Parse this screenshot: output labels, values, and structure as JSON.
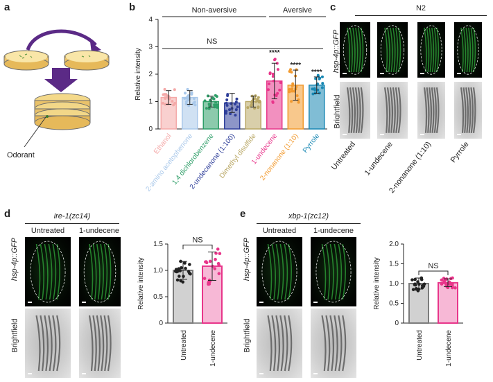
{
  "panels": {
    "a": {
      "label": "a",
      "odorant_label": "Odorant"
    },
    "b": {
      "label": "b",
      "group_non_aversive": "Non-aversive",
      "group_aversive": "Aversive",
      "ns_label": "NS",
      "ylabel": "Relative intensity"
    },
    "c": {
      "label": "c",
      "strain": "N2",
      "row_fluor": "hsp-4p::GFP",
      "row_bright": "Brightfield",
      "conditions": [
        "Untreated",
        "1-undecene",
        "2-nonanone (1:10)",
        "Pyrrole"
      ]
    },
    "d": {
      "label": "d",
      "genotype": "ire-1(zc14)",
      "col_untreated": "Untreated",
      "col_treated": "1-undecene",
      "row_fluor": "hsp-4p::GFP",
      "row_bright": "Brightfield"
    },
    "e": {
      "label": "e",
      "genotype": "xbp-1(zc12)",
      "col_untreated": "Untreated",
      "col_treated": "1-undecene",
      "row_fluor": "hsp-4p::GFP",
      "row_bright": "Brightfield"
    }
  },
  "chart_data": [
    {
      "id": "b",
      "type": "bar",
      "title": "",
      "xlabel": "",
      "ylabel": "Relative intensity",
      "ylim": [
        0,
        4
      ],
      "yticks": [
        "0",
        "1",
        "2",
        "3",
        "4"
      ],
      "categories": [
        "Ethanol",
        "2-amino acetophenone",
        "1,4 dichlorobenzene",
        "2-undecanone (1:100)",
        "Dimethyl disulfide",
        "1-undecene",
        "2-nonanone (1:10)",
        "Pyrrole"
      ],
      "values": [
        1.15,
        1.15,
        1.0,
        0.95,
        1.0,
        1.75,
        1.6,
        1.6
      ],
      "errors": [
        0.25,
        0.25,
        0.2,
        0.35,
        0.2,
        0.65,
        0.55,
        0.3
      ],
      "colors": [
        "#f4a9a8",
        "#a9c8ea",
        "#2e9e68",
        "#2f3f9a",
        "#b9a765",
        "#e8358a",
        "#f29a2e",
        "#1787b3"
      ],
      "significance": [
        "",
        "",
        "",
        "",
        "",
        "****",
        "****",
        "****"
      ]
    },
    {
      "id": "d",
      "type": "bar",
      "title": "NS",
      "xlabel": "",
      "ylabel": "Relative intensity",
      "ylim": [
        0,
        1.5
      ],
      "yticks": [
        "0",
        "0.5",
        "1.0",
        "1.5"
      ],
      "categories": [
        "Untreated",
        "1-undecene"
      ],
      "values": [
        1.0,
        1.08
      ],
      "errors": [
        0.17,
        0.27
      ],
      "colors": [
        "#7c7c7c",
        "#e8358a"
      ]
    },
    {
      "id": "e",
      "type": "bar",
      "title": "NS",
      "xlabel": "",
      "ylabel": "Relative intensity",
      "ylim": [
        0,
        2.0
      ],
      "yticks": [
        "0",
        "0.5",
        "1.0",
        "1.5",
        "2.0"
      ],
      "categories": [
        "Untreated",
        "1-undecene"
      ],
      "values": [
        1.0,
        1.02
      ],
      "errors": [
        0.14,
        0.1
      ],
      "colors": [
        "#7c7c7c",
        "#e8358a"
      ]
    }
  ]
}
